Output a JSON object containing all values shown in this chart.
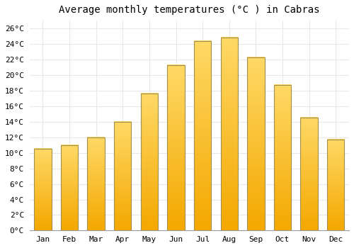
{
  "title": "Average monthly temperatures (°C ) in Cabras",
  "months": [
    "Jan",
    "Feb",
    "Mar",
    "Apr",
    "May",
    "Jun",
    "Jul",
    "Aug",
    "Sep",
    "Oct",
    "Nov",
    "Dec"
  ],
  "temperatures": [
    10.5,
    11.0,
    12.0,
    14.0,
    17.6,
    21.3,
    24.4,
    24.8,
    22.3,
    18.7,
    14.5,
    11.7
  ],
  "bar_color_top": "#FFD966",
  "bar_color_bottom": "#F4A800",
  "bar_edge_color": "#A09050",
  "background_color": "#FFFFFF",
  "grid_color": "#E8E8E8",
  "ylim": [
    0,
    27
  ],
  "ytick_step": 2,
  "title_fontsize": 10,
  "tick_fontsize": 8,
  "font_family": "monospace"
}
